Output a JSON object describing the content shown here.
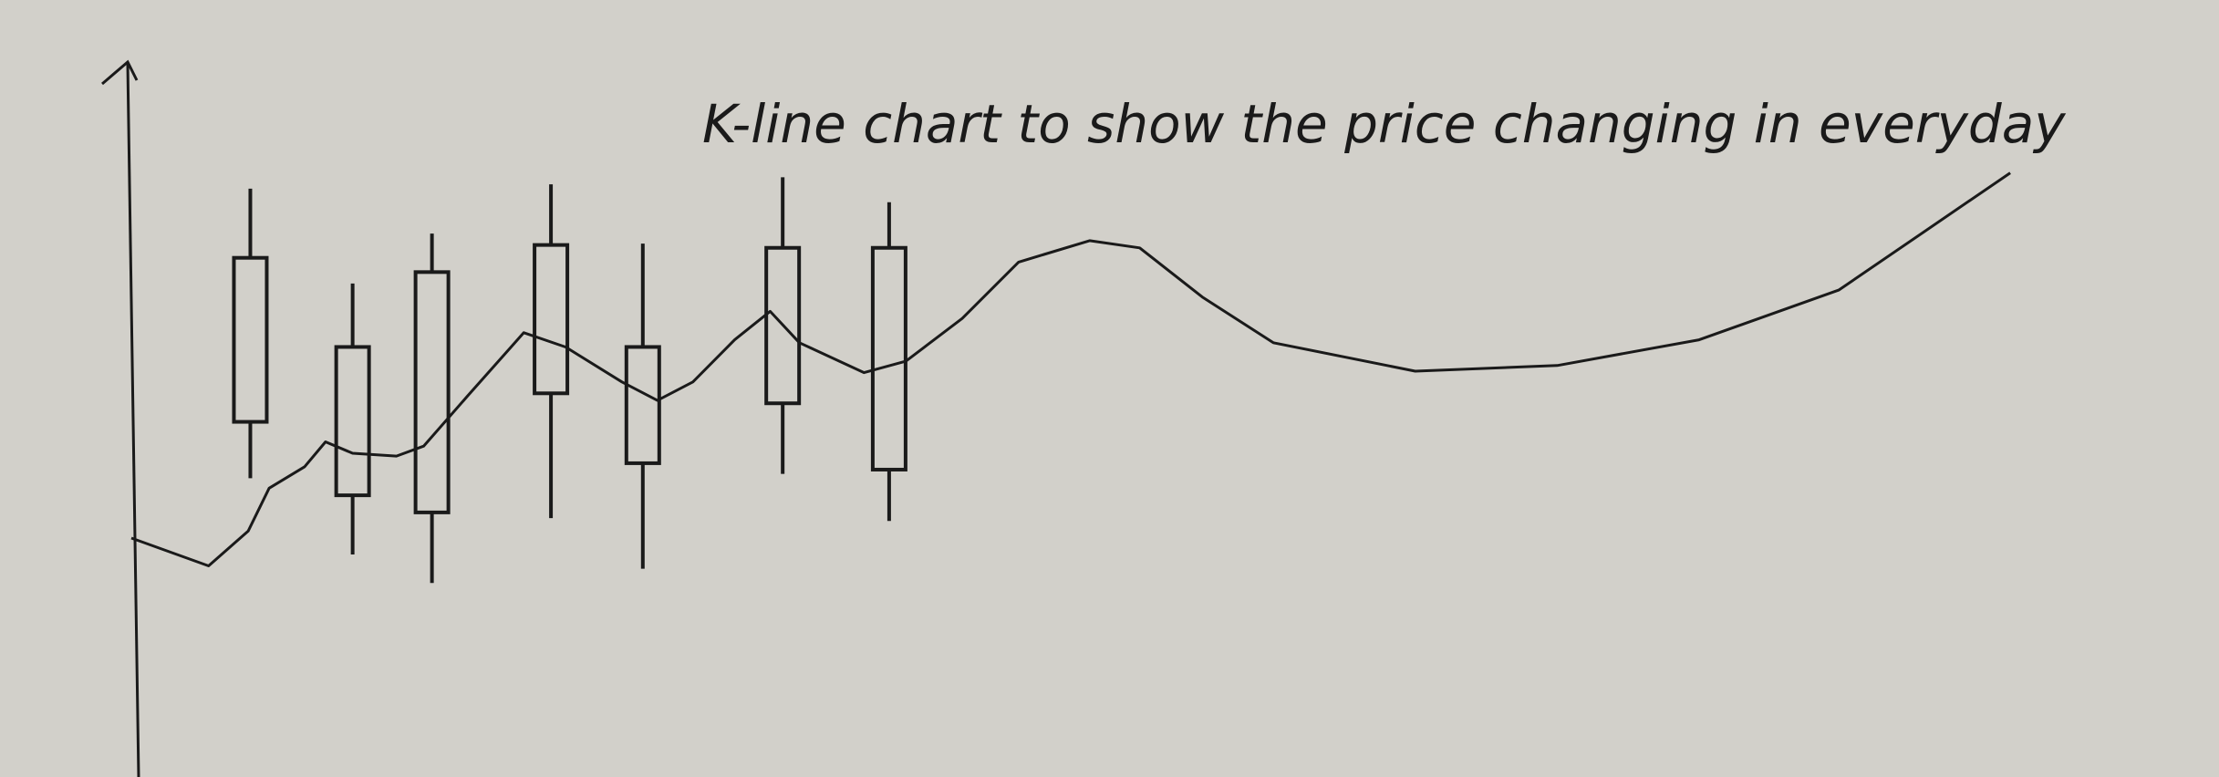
{
  "chart_data": {
    "type": "candlestick",
    "title": "K-line chart to show the price changing in everyday",
    "x": [
      5.7,
      10.6,
      14.4,
      20.1,
      24.5,
      31.2,
      36.3
    ],
    "open": [
      72.8,
      60.3,
      70.8,
      74.6,
      60.3,
      74.2,
      74.2
    ],
    "high": [
      82.5,
      69.2,
      76.2,
      83.1,
      74.8,
      84.1,
      80.6
    ],
    "low": [
      41.9,
      31.2,
      27.2,
      36.3,
      29.2,
      42.5,
      35.9
    ],
    "close": [
      49.8,
      39.5,
      37.1,
      53.8,
      44.0,
      52.4,
      43.1
    ],
    "line": {
      "type": "line",
      "x": [
        0,
        3.7,
        5.6,
        6.6,
        8.3,
        9.3,
        10.6,
        12.7,
        14.0,
        16.1,
        18.8,
        20.8,
        23.5,
        25.2,
        26.9,
        28.9,
        30.6,
        32.0,
        35.1,
        37.1,
        39.8,
        42.5,
        45.9,
        48.3,
        51.3,
        54.7,
        61.5,
        68.3,
        75.1,
        81.8,
        90.0
      ],
      "values": [
        33.5,
        29.6,
        34.5,
        40.5,
        43.5,
        47.0,
        45.4,
        45.0,
        46.4,
        53.4,
        62.3,
        60.3,
        55.4,
        52.8,
        55.4,
        61.3,
        65.3,
        60.9,
        56.7,
        58.3,
        64.3,
        72.2,
        75.2,
        74.2,
        67.3,
        60.9,
        56.9,
        57.7,
        61.3,
        68.3,
        84.7
      ]
    },
    "xlim": [
      0,
      100
    ],
    "ylim": [
      0,
      100
    ],
    "color": "#1a1a1a"
  }
}
